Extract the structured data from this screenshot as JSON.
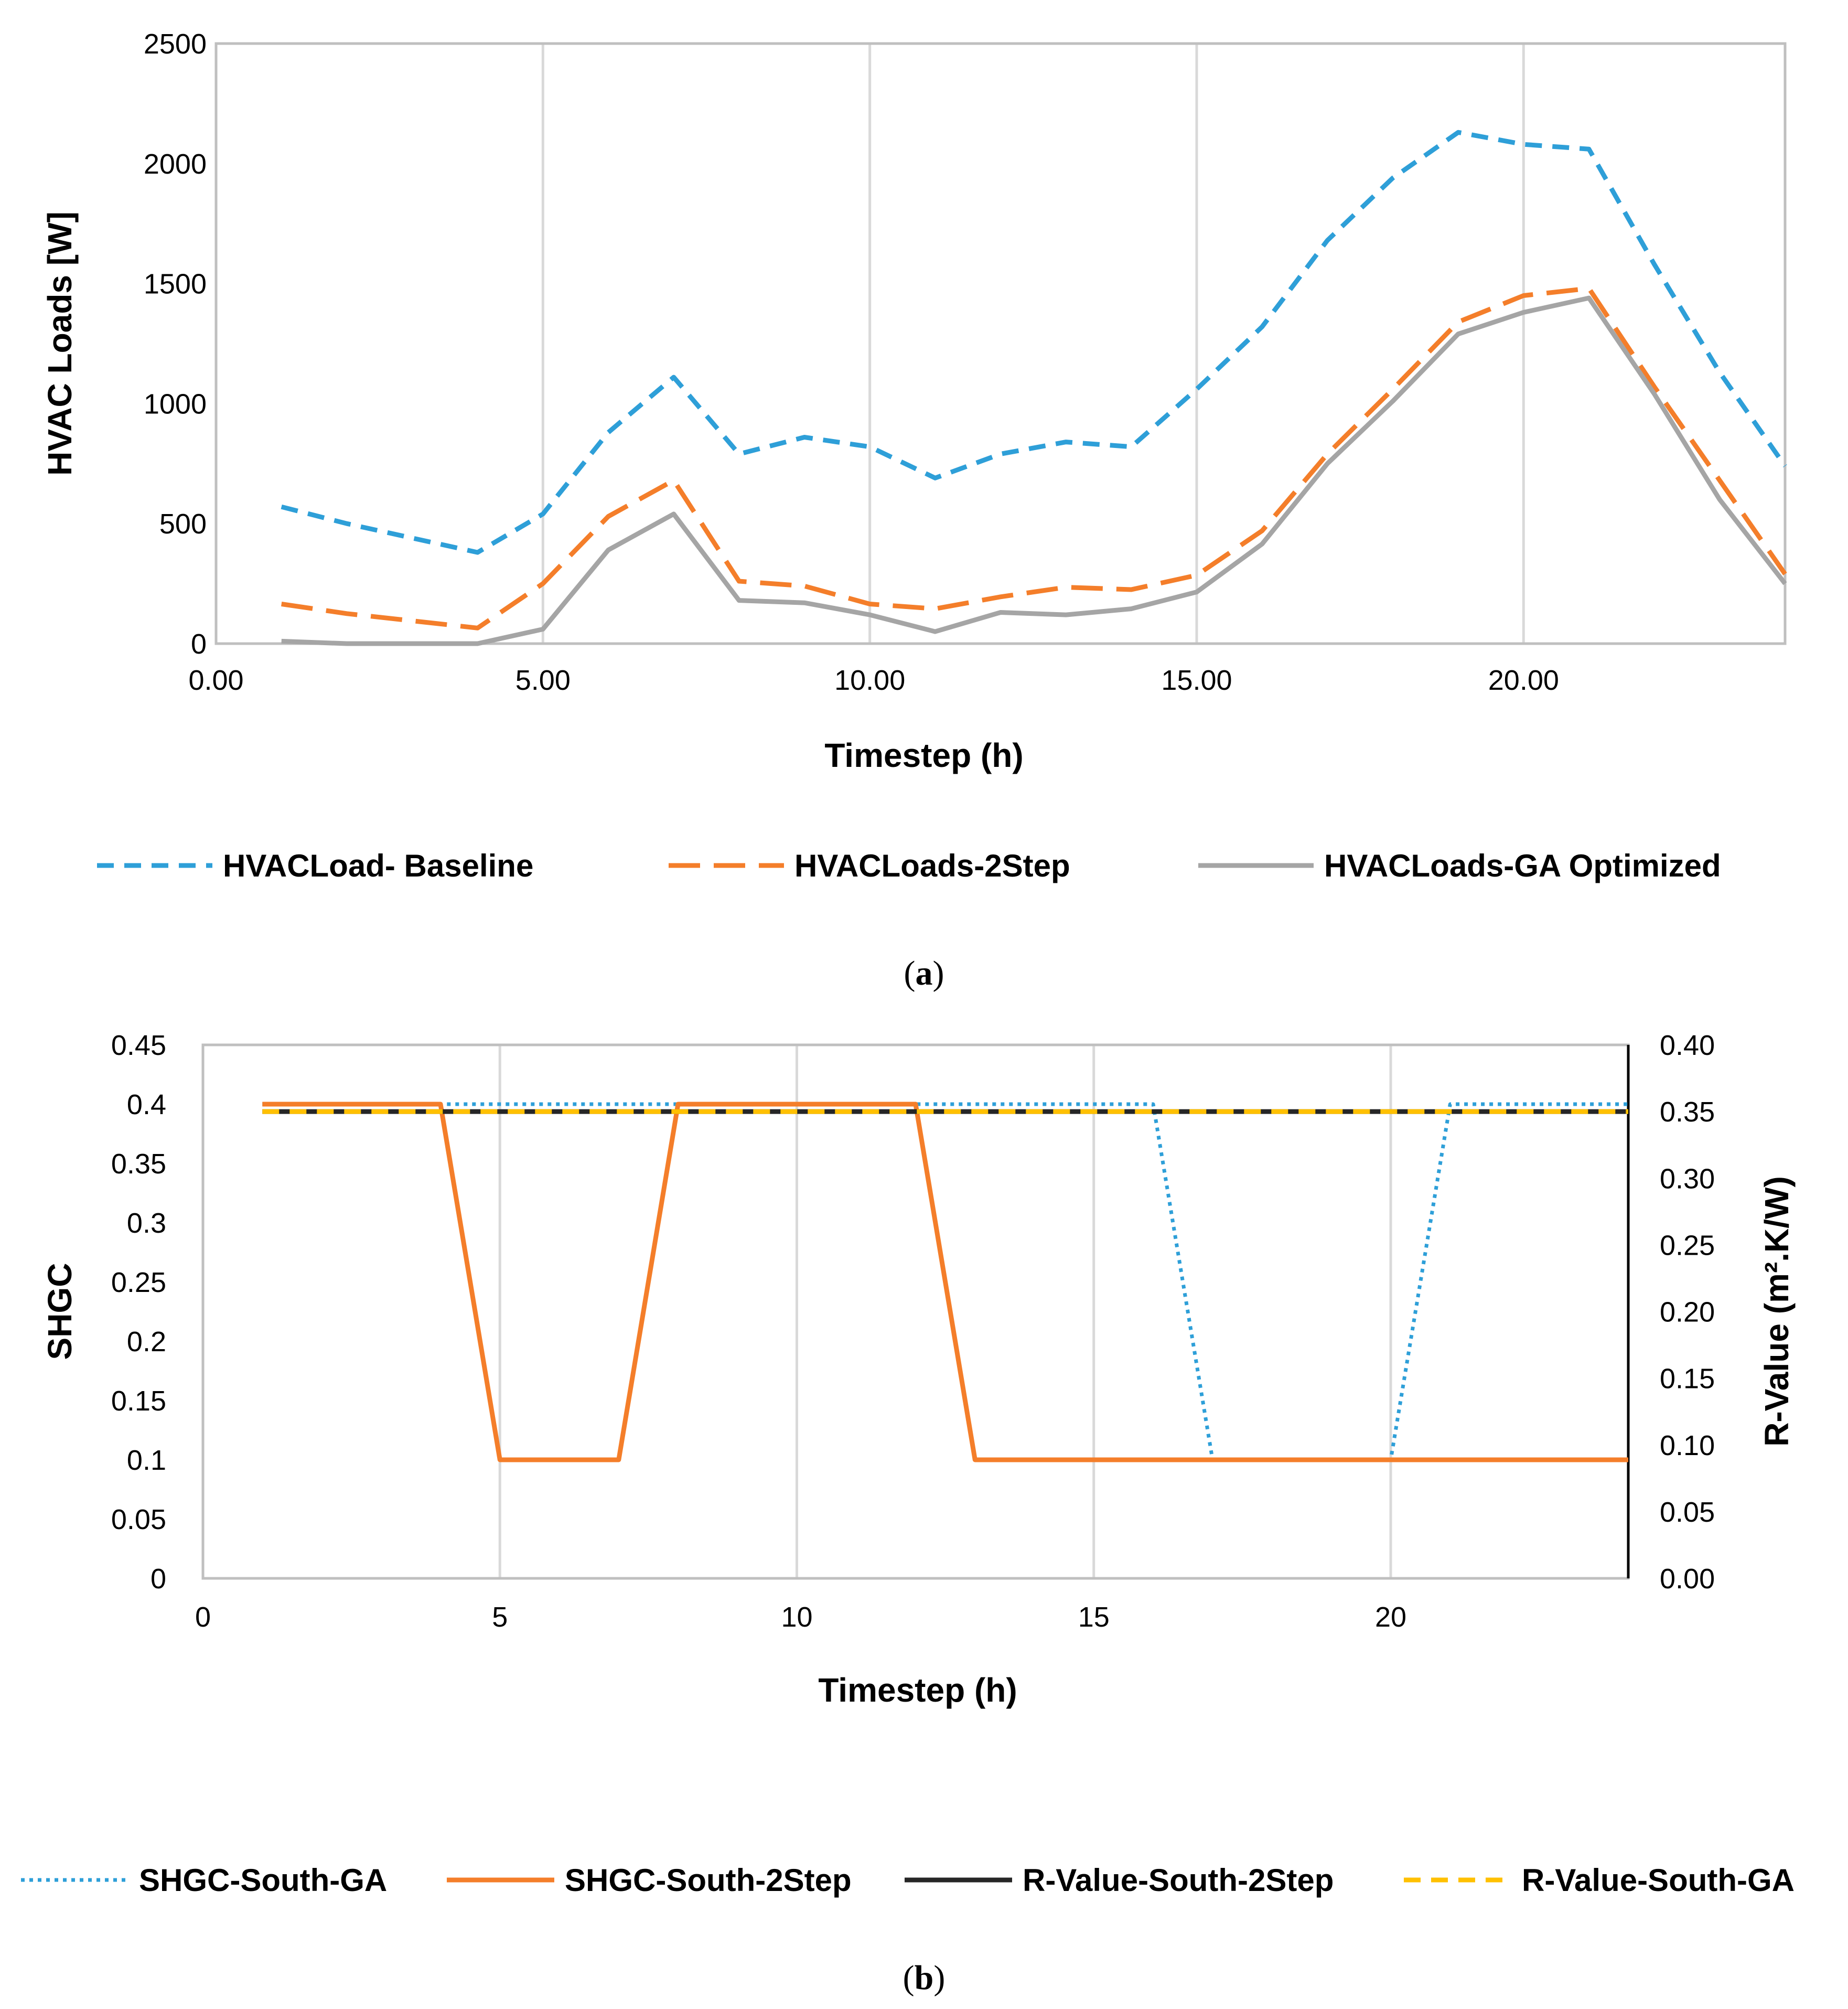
{
  "chart_data": [
    {
      "type": "line",
      "xlabel": "Timestep (h)",
      "ylabel": "HVAC Loads [W]",
      "xlim": [
        0,
        24
      ],
      "ylim": [
        0,
        2500
      ],
      "x_ticks": [
        0,
        5,
        10,
        15,
        20
      ],
      "x_tick_labels": [
        "0.00",
        "5.00",
        "10.00",
        "15.00",
        "20.00"
      ],
      "y_ticks": [
        0,
        500,
        1000,
        1500,
        2000,
        2500
      ],
      "y_tick_labels": [
        "0",
        "500",
        "1000",
        "1500",
        "2000",
        "2500"
      ],
      "grid": "vertical",
      "legend_position": "bottom",
      "caption_label": "a",
      "x": [
        1,
        2,
        3,
        4,
        5,
        6,
        7,
        8,
        9,
        10,
        11,
        12,
        13,
        14,
        15,
        16,
        17,
        18,
        19,
        20,
        21,
        22,
        23,
        24
      ],
      "series": [
        {
          "name": "HVACLoad- Baseline",
          "color": "#2E9FD8",
          "style": "dashed",
          "values": [
            570,
            500,
            440,
            380,
            540,
            880,
            1110,
            790,
            860,
            820,
            690,
            790,
            840,
            820,
            1060,
            1320,
            1680,
            1940,
            2130,
            2080,
            2060,
            1580,
            1130,
            740
          ]
        },
        {
          "name": "HVACLoads-2Step",
          "color": "#F47E2A",
          "style": "longdash",
          "values": [
            165,
            125,
            95,
            65,
            250,
            530,
            680,
            260,
            240,
            165,
            145,
            195,
            235,
            225,
            285,
            470,
            790,
            1060,
            1340,
            1450,
            1480,
            1070,
            680,
            290
          ]
        },
        {
          "name": "HVACLoads-GA Optimized",
          "color": "#A5A5A5",
          "style": "solid",
          "values": [
            10,
            0,
            0,
            0,
            60,
            390,
            540,
            180,
            170,
            120,
            50,
            130,
            120,
            145,
            215,
            415,
            750,
            1010,
            1290,
            1380,
            1440,
            1040,
            600,
            250
          ]
        }
      ]
    },
    {
      "type": "line",
      "xlabel": "Timestep (h)",
      "ylabel": "SHGC",
      "y2label": "R-Value (m².K/W)",
      "xlim": [
        0,
        24
      ],
      "ylim": [
        0,
        0.45
      ],
      "y2lim": [
        0,
        0.4
      ],
      "x_ticks": [
        0,
        5,
        10,
        15,
        20
      ],
      "x_tick_labels": [
        "0",
        "5",
        "10",
        "15",
        "20"
      ],
      "y_ticks": [
        0,
        0.05,
        0.1,
        0.15,
        0.2,
        0.25,
        0.3,
        0.35,
        0.4,
        0.45
      ],
      "y_tick_labels": [
        "0",
        "0.05",
        "0.1",
        "0.15",
        "0.2",
        "0.25",
        "0.3",
        "0.35",
        "0.4",
        "0.45"
      ],
      "y2_ticks": [
        0,
        0.05,
        0.1,
        0.15,
        0.2,
        0.25,
        0.3,
        0.35,
        0.4
      ],
      "y2_tick_labels": [
        "0.00",
        "0.05",
        "0.10",
        "0.15",
        "0.20",
        "0.25",
        "0.30",
        "0.35",
        "0.40"
      ],
      "grid": "vertical",
      "legend_position": "bottom",
      "caption_label": "b",
      "x": [
        1,
        2,
        3,
        4,
        5,
        6,
        7,
        8,
        9,
        10,
        11,
        12,
        13,
        14,
        15,
        16,
        17,
        18,
        19,
        20,
        21,
        22,
        23,
        24
      ],
      "series": [
        {
          "name": "SHGC-South-GA",
          "axis": "left",
          "color": "#2E9FD8",
          "style": "dotted",
          "values": [
            0.4,
            0.4,
            0.4,
            0.4,
            0.4,
            0.4,
            0.4,
            0.4,
            0.4,
            0.4,
            0.4,
            0.4,
            0.4,
            0.4,
            0.4,
            0.4,
            0.1,
            0.1,
            0.1,
            0.1,
            0.4,
            0.4,
            0.4,
            0.4
          ]
        },
        {
          "name": "SHGC-South-2Step",
          "axis": "left",
          "color": "#F47E2A",
          "style": "solid",
          "values": [
            0.4,
            0.4,
            0.4,
            0.4,
            0.1,
            0.1,
            0.1,
            0.4,
            0.4,
            0.4,
            0.4,
            0.4,
            0.1,
            0.1,
            0.1,
            0.1,
            0.1,
            0.1,
            0.1,
            0.1,
            0.1,
            0.1,
            0.1,
            0.1
          ]
        },
        {
          "name": "R-Value-South-2Step",
          "axis": "right",
          "color": "#262626",
          "style": "solid",
          "values": [
            0.35,
            0.35,
            0.35,
            0.35,
            0.35,
            0.35,
            0.35,
            0.35,
            0.35,
            0.35,
            0.35,
            0.35,
            0.35,
            0.35,
            0.35,
            0.35,
            0.35,
            0.35,
            0.35,
            0.35,
            0.35,
            0.35,
            0.35,
            0.35
          ]
        },
        {
          "name": "R-Value-South-GA",
          "axis": "right",
          "color": "#FFC000",
          "style": "dashed",
          "values": [
            0.35,
            0.35,
            0.35,
            0.35,
            0.35,
            0.35,
            0.35,
            0.35,
            0.35,
            0.35,
            0.35,
            0.35,
            0.35,
            0.35,
            0.35,
            0.35,
            0.35,
            0.35,
            0.35,
            0.35,
            0.35,
            0.35,
            0.35,
            0.35
          ]
        }
      ]
    }
  ]
}
